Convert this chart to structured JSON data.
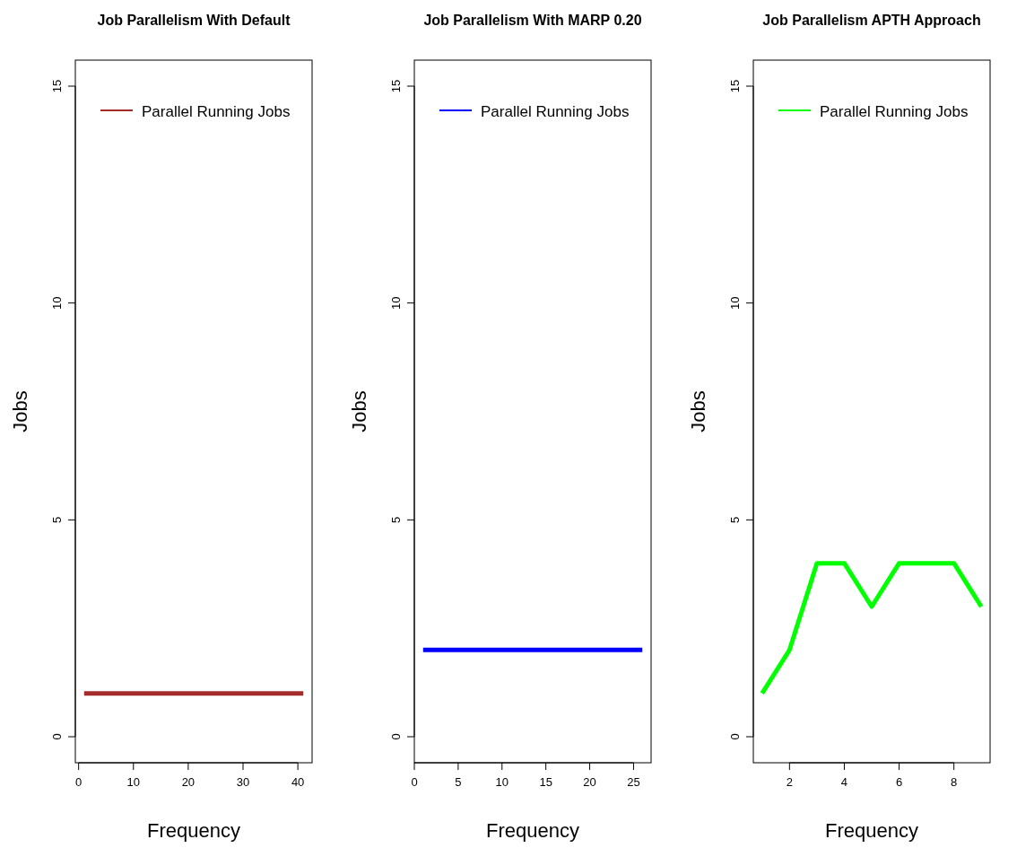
{
  "chart_data": [
    {
      "type": "line",
      "title": "Job Parallelism With Default",
      "xlabel": "Frequency",
      "ylabel": "Jobs",
      "legend": "top",
      "grid": false,
      "xlim": [
        -0.6,
        42.6
      ],
      "xticks": [
        0,
        10,
        20,
        30,
        40
      ],
      "ylim": [
        -0.6,
        15.6
      ],
      "yticks": [
        0,
        5,
        10,
        15
      ],
      "x": [
        1,
        2,
        3,
        4,
        5,
        6,
        7,
        8,
        9,
        10,
        11,
        12,
        13,
        14,
        15,
        16,
        17,
        18,
        19,
        20,
        21,
        22,
        23,
        24,
        25,
        26,
        27,
        28,
        29,
        30,
        31,
        32,
        33,
        34,
        35,
        36,
        37,
        38,
        39,
        40,
        41
      ],
      "series": [
        {
          "name": "Parallel Running Jobs",
          "color": "#a52a2a",
          "values": [
            1,
            1,
            1,
            1,
            1,
            1,
            1,
            1,
            1,
            1,
            1,
            1,
            1,
            1,
            1,
            1,
            1,
            1,
            1,
            1,
            1,
            1,
            1,
            1,
            1,
            1,
            1,
            1,
            1,
            1,
            1,
            1,
            1,
            1,
            1,
            1,
            1,
            1,
            1,
            1,
            1
          ]
        }
      ]
    },
    {
      "type": "line",
      "title": "Job Parallelism With MARP 0.20",
      "xlabel": "Frequency",
      "ylabel": "Jobs",
      "legend": "top",
      "grid": false,
      "xlim": [
        0,
        27
      ],
      "xticks": [
        0,
        5,
        10,
        15,
        20,
        25
      ],
      "ylim": [
        -0.6,
        15.6
      ],
      "yticks": [
        0,
        5,
        10,
        15
      ],
      "x": [
        1,
        2,
        3,
        4,
        5,
        6,
        7,
        8,
        9,
        10,
        11,
        12,
        13,
        14,
        15,
        16,
        17,
        18,
        19,
        20,
        21,
        22,
        23,
        24,
        25,
        26
      ],
      "series": [
        {
          "name": "Parallel Running Jobs",
          "color": "#0000ff",
          "values": [
            2,
            2,
            2,
            2,
            2,
            2,
            2,
            2,
            2,
            2,
            2,
            2,
            2,
            2,
            2,
            2,
            2,
            2,
            2,
            2,
            2,
            2,
            2,
            2,
            2,
            2
          ]
        }
      ]
    },
    {
      "type": "line",
      "title": "Job Parallelism APTH Approach",
      "xlabel": "Frequency",
      "ylabel": "Jobs",
      "legend": "top",
      "grid": false,
      "xlim": [
        0.68,
        9.32
      ],
      "xticks": [
        2,
        4,
        6,
        8
      ],
      "ylim": [
        -0.6,
        15.6
      ],
      "yticks": [
        0,
        5,
        10,
        15
      ],
      "x": [
        1,
        2,
        3,
        4,
        5,
        6,
        7,
        8,
        9
      ],
      "series": [
        {
          "name": "Parallel Running Jobs",
          "color": "#00ff00",
          "values": [
            1,
            2,
            4,
            4,
            3,
            4,
            4,
            4,
            3
          ]
        }
      ]
    }
  ]
}
